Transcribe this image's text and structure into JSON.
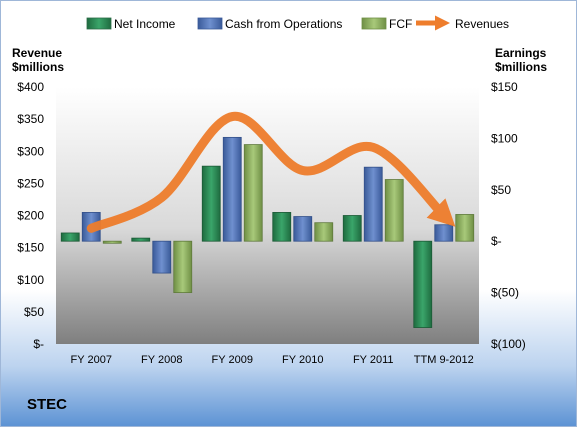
{
  "chart_data": {
    "type": "bar",
    "categories": [
      "FY 2007",
      "FY 2008",
      "FY 2009",
      "FY 2010",
      "FY 2011",
      "TTM 9-2012"
    ],
    "series": [
      {
        "name": "Net Income",
        "axis": "right",
        "color": "#2e8b57",
        "values": [
          8,
          3,
          73,
          28,
          25,
          -84
        ]
      },
      {
        "name": "Cash from Operations",
        "axis": "right",
        "color": "#4f72b5",
        "values": [
          28,
          -31,
          101,
          24,
          72,
          16
        ]
      },
      {
        "name": "FCF",
        "axis": "right",
        "color": "#8fb062",
        "values": [
          -2,
          -50,
          94,
          18,
          60,
          26
        ]
      },
      {
        "name": "Revenues",
        "axis": "left",
        "type": "line",
        "color": "#ee7d2c",
        "values": [
          180,
          228,
          354,
          270,
          306,
          200
        ]
      }
    ],
    "y_left": {
      "label_line1": "Revenue",
      "label_line2": "$millions",
      "ylim": [
        0,
        400
      ],
      "ticks": [
        "$-",
        "$50",
        "$100",
        "$150",
        "$200",
        "$250",
        "$300",
        "$350",
        "$400"
      ],
      "tick_values": [
        0,
        50,
        100,
        150,
        200,
        250,
        300,
        350,
        400
      ]
    },
    "y_right": {
      "label_line1": "Earnings",
      "label_line2": "$millions",
      "ylim": [
        -100,
        150
      ],
      "ticks": [
        "$(100)",
        "$(50)",
        "$-",
        "$50",
        "$100",
        "$150"
      ],
      "tick_values": [
        -100,
        -50,
        0,
        50,
        100,
        150
      ]
    },
    "legend_position": "top",
    "grid": false
  },
  "company": "STEC"
}
